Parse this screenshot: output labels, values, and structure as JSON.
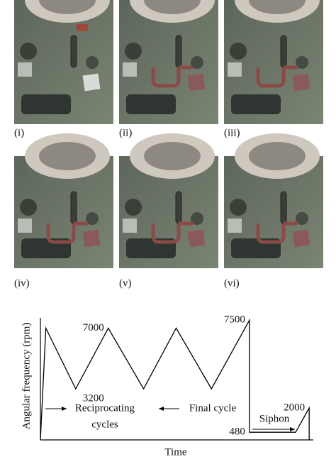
{
  "panels": {
    "labels": [
      "(i)",
      "(ii)",
      "(iii)",
      "(iv)",
      "(v)",
      "(vi)"
    ]
  },
  "chart_data": {
    "type": "line",
    "y_label": "Angular frequency (rpm)",
    "x_label": "Time",
    "x": [
      0,
      2,
      13,
      25,
      38,
      50,
      63,
      77,
      77,
      94,
      99,
      99
    ],
    "xlim": [
      0,
      100
    ],
    "series": [
      {
        "color": "#000000",
        "values": [
          0,
          7000,
          3200,
          7000,
          3200,
          7000,
          3200,
          7500,
          480,
          480,
          2000,
          0
        ]
      }
    ],
    "ylim": [
      0,
      8000
    ],
    "labeled_points": [
      2,
      3,
      7,
      8,
      10
    ],
    "annotations": [
      "Reciprocating",
      "cycles",
      "Final cycle",
      "Siphon"
    ]
  }
}
